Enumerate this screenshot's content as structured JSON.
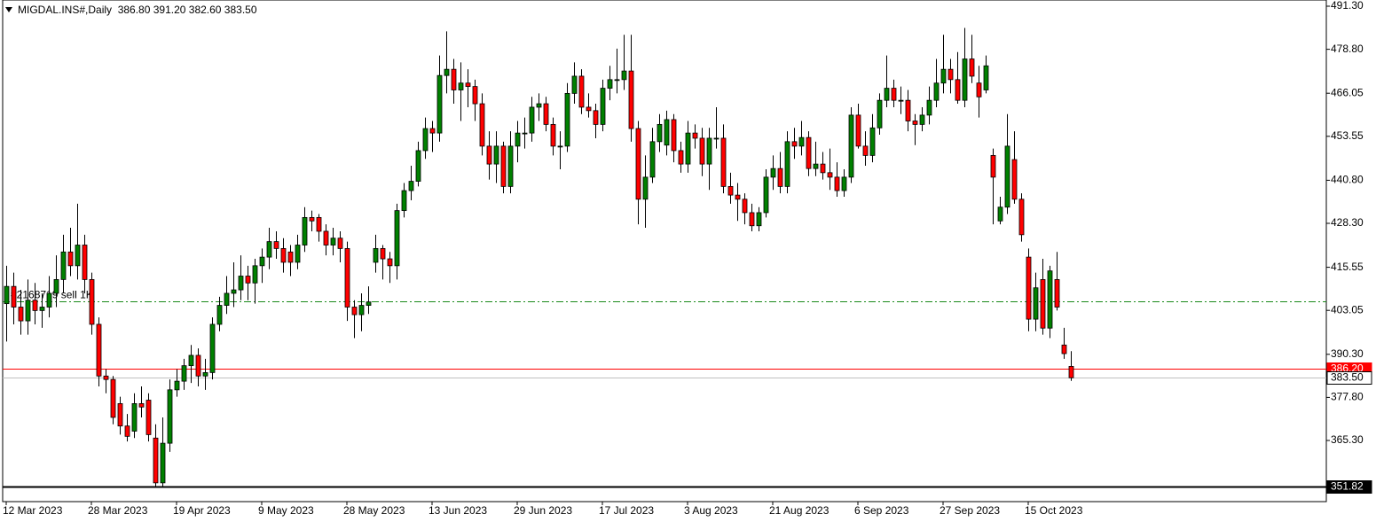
{
  "chart_data": {
    "type": "candlestick",
    "title": "MIGDAL.INS#,Daily  386.80 391.20 382.60 383.50",
    "up_color": "#008000",
    "down_color": "#ff0000",
    "ylim": [
      347.56,
      493.1
    ],
    "yticks": [
      {
        "value": 491.3,
        "label": "491.30"
      },
      {
        "value": 478.8,
        "label": "478.80"
      },
      {
        "value": 466.05,
        "label": "466.05"
      },
      {
        "value": 453.55,
        "label": "453.55"
      },
      {
        "value": 440.8,
        "label": "440.80"
      },
      {
        "value": 428.3,
        "label": "428.30"
      },
      {
        "value": 415.55,
        "label": "415.55"
      },
      {
        "value": 403.05,
        "label": "403.05"
      },
      {
        "value": 390.3,
        "label": "390.30"
      },
      {
        "value": 377.8,
        "label": "377.80"
      },
      {
        "value": 365.3,
        "label": "365.30"
      }
    ],
    "hlines": [
      {
        "value": 405.7,
        "text": "#2168719 sell 1K",
        "color": "#1a8a1a",
        "style": "dash-dot"
      },
      {
        "value": 386.2,
        "label": "386.20",
        "color": "#ff0000"
      },
      {
        "value": 383.5,
        "label": "383.50",
        "color": "#c0c0c0"
      },
      {
        "value": 351.82,
        "label": "351.82",
        "color": "#000000"
      }
    ],
    "categories": [
      "12 Mar 2023",
      null,
      null,
      null,
      null,
      null,
      null,
      null,
      null,
      null,
      null,
      null,
      "28 Mar 2023",
      null,
      null,
      null,
      null,
      null,
      null,
      null,
      null,
      null,
      null,
      null,
      "19 Apr 2023",
      null,
      null,
      null,
      null,
      null,
      null,
      null,
      null,
      null,
      null,
      null,
      "9 May 2023",
      null,
      null,
      null,
      null,
      null,
      null,
      null,
      null,
      null,
      null,
      null,
      "28 May 2023",
      null,
      null,
      null,
      null,
      null,
      null,
      null,
      null,
      null,
      null,
      null,
      "13 Jun 2023",
      null,
      null,
      null,
      null,
      null,
      null,
      null,
      null,
      null,
      null,
      null,
      "29 Jun 2023",
      null,
      null,
      null,
      null,
      null,
      null,
      null,
      null,
      null,
      null,
      null,
      "17 Jul 2023",
      null,
      null,
      null,
      null,
      null,
      null,
      null,
      null,
      null,
      null,
      null,
      "3 Aug 2023",
      null,
      null,
      null,
      null,
      null,
      null,
      null,
      null,
      null,
      null,
      null,
      "21 Aug 2023",
      null,
      null,
      null,
      null,
      null,
      null,
      null,
      null,
      null,
      null,
      null,
      "6 Sep 2023",
      null,
      null,
      null,
      null,
      null,
      null,
      null,
      null,
      null,
      null,
      null,
      "27 Sep 2023",
      null,
      null,
      null,
      null,
      null,
      null,
      null,
      null,
      null,
      null,
      null,
      "15 Oct 2023",
      null,
      null,
      null,
      null,
      null,
      null
    ],
    "ohlc": [
      [
        405,
        416,
        394,
        410
      ],
      [
        410,
        414,
        399,
        404
      ],
      [
        404,
        409,
        396,
        400
      ],
      [
        400,
        412,
        396,
        406
      ],
      [
        406,
        411,
        399,
        403
      ],
      [
        403,
        408,
        398,
        404
      ],
      [
        404,
        413,
        401,
        408
      ],
      [
        408,
        419,
        404,
        412
      ],
      [
        412,
        425,
        408,
        420
      ],
      [
        420,
        427,
        413,
        416
      ],
      [
        416,
        434,
        412,
        422
      ],
      [
        422,
        425,
        408,
        412
      ],
      [
        412,
        414,
        396,
        399
      ],
      [
        399,
        401,
        381,
        384
      ],
      [
        384,
        386,
        379,
        383
      ],
      [
        383,
        384,
        370,
        372
      ],
      [
        376,
        378,
        367,
        369.5
      ],
      [
        369.5,
        373,
        365,
        366.5
      ],
      [
        368,
        379,
        366,
        376
      ],
      [
        376,
        381,
        372,
        375
      ],
      [
        377,
        379,
        365,
        367
      ],
      [
        366,
        370,
        352,
        353
      ],
      [
        353,
        372,
        352,
        364.5
      ],
      [
        364.5,
        383,
        362,
        380
      ],
      [
        380,
        386,
        378,
        382.5
      ],
      [
        382.5,
        389,
        380,
        387
      ],
      [
        387,
        393,
        382,
        390
      ],
      [
        390,
        392,
        381,
        384
      ],
      [
        384,
        389,
        380,
        385
      ],
      [
        385,
        401,
        383,
        399
      ],
      [
        399,
        407,
        397,
        404.5
      ],
      [
        404.5,
        413,
        402,
        408
      ],
      [
        408,
        417,
        404,
        409
      ],
      [
        409,
        419,
        406,
        413
      ],
      [
        413,
        416,
        406,
        411
      ],
      [
        411,
        418,
        405,
        416
      ],
      [
        416,
        421,
        411,
        418.5
      ],
      [
        418.5,
        427,
        415,
        423
      ],
      [
        423,
        426,
        418,
        421
      ],
      [
        421,
        424,
        414,
        417
      ],
      [
        420,
        422,
        413,
        417
      ],
      [
        417,
        425,
        415,
        422
      ],
      [
        422,
        433,
        420,
        430
      ],
      [
        430,
        432,
        426,
        429
      ],
      [
        430,
        431,
        423,
        426
      ],
      [
        426,
        428,
        419,
        422
      ],
      [
        422,
        427,
        419,
        424
      ],
      [
        424,
        426,
        417,
        421
      ],
      [
        421,
        423,
        400,
        404
      ],
      [
        404,
        406,
        395,
        401.8
      ],
      [
        401.8,
        408,
        397,
        404.5
      ],
      [
        404.5,
        410,
        402,
        405.5
      ],
      [
        417,
        425,
        414,
        421
      ],
      [
        421,
        422,
        412,
        418
      ],
      [
        418,
        420,
        411,
        416
      ],
      [
        416,
        434,
        412,
        432
      ],
      [
        432,
        440,
        430,
        437.8
      ],
      [
        437.8,
        445,
        435,
        440.5
      ],
      [
        440.5,
        452,
        439,
        449.4
      ],
      [
        449.4,
        459,
        447,
        455.8
      ],
      [
        455.8,
        458,
        449,
        454.5
      ],
      [
        454.5,
        477,
        452,
        471.2
      ],
      [
        471.2,
        484,
        466,
        473
      ],
      [
        473,
        476,
        463,
        467
      ],
      [
        467,
        475,
        458,
        469
      ],
      [
        469,
        473,
        462,
        468
      ],
      [
        468,
        470,
        458,
        463
      ],
      [
        463,
        466,
        448,
        450.7
      ],
      [
        450.7,
        455,
        441,
        445.5
      ],
      [
        445.5,
        455,
        440,
        450.7
      ],
      [
        450.7,
        452,
        437,
        439
      ],
      [
        439,
        455,
        437,
        450.7
      ],
      [
        450.7,
        458,
        446,
        454.5
      ],
      [
        454.5,
        459,
        450,
        454.5
      ],
      [
        454.5,
        465,
        452,
        462
      ],
      [
        462,
        466,
        458,
        463
      ],
      [
        463,
        465,
        455,
        457
      ],
      [
        457,
        459,
        448,
        450.7
      ],
      [
        450.7,
        455,
        444,
        450.7
      ],
      [
        450.7,
        469,
        449,
        466
      ],
      [
        466,
        475,
        463,
        471
      ],
      [
        471,
        473,
        460,
        462
      ],
      [
        462,
        466,
        459,
        461
      ],
      [
        461,
        463,
        453,
        457
      ],
      [
        457,
        470,
        455,
        467.5
      ],
      [
        467.5,
        474,
        464,
        470
      ],
      [
        470,
        479,
        466,
        470
      ],
      [
        470,
        483,
        467,
        472.5
      ],
      [
        472.5,
        483,
        452,
        455.8
      ],
      [
        455.8,
        458,
        428,
        435.3
      ],
      [
        435.3,
        448,
        427,
        441.7
      ],
      [
        441.7,
        456,
        440,
        452
      ],
      [
        452,
        460,
        449,
        457
      ],
      [
        451,
        461,
        448,
        458.4
      ],
      [
        458.4,
        460,
        446,
        449.4
      ],
      [
        449.4,
        452,
        443,
        445.5
      ],
      [
        445.5,
        458,
        443,
        454.5
      ],
      [
        454.5,
        457,
        450,
        453
      ],
      [
        453,
        456,
        442,
        445.5
      ],
      [
        445.5,
        456,
        438,
        453
      ],
      [
        453,
        462,
        450,
        453
      ],
      [
        453,
        457,
        437,
        439
      ],
      [
        439,
        443,
        434,
        436.5
      ],
      [
        436.5,
        440,
        429,
        435.3
      ],
      [
        435.3,
        437,
        428,
        431.4
      ],
      [
        431.4,
        434,
        426,
        427.6
      ],
      [
        427.6,
        433,
        426,
        431.4
      ],
      [
        431.4,
        444,
        430,
        441.7
      ],
      [
        441.7,
        448,
        438,
        444.2
      ],
      [
        444.2,
        449,
        437,
        439
      ],
      [
        439,
        455,
        437,
        452
      ],
      [
        452,
        456,
        447,
        450.7
      ],
      [
        450.7,
        458,
        448,
        453.2
      ],
      [
        453.2,
        455,
        442,
        444.2
      ],
      [
        444.2,
        452,
        442,
        445.5
      ],
      [
        445.5,
        449,
        441,
        443
      ],
      [
        443,
        450,
        438,
        441.7
      ],
      [
        441.7,
        446,
        436,
        437.8
      ],
      [
        437.8,
        444,
        436,
        441.7
      ],
      [
        441.7,
        462,
        440,
        459.7
      ],
      [
        459.7,
        463,
        450,
        450.7
      ],
      [
        450.7,
        455,
        445,
        448
      ],
      [
        448,
        460,
        446,
        456
      ],
      [
        456,
        466,
        454,
        464
      ],
      [
        464,
        477,
        462,
        467.5
      ],
      [
        467.5,
        470,
        462,
        464
      ],
      [
        464,
        468,
        460,
        464
      ],
      [
        464,
        467,
        455,
        458
      ],
      [
        458,
        460,
        451,
        457
      ],
      [
        457,
        462,
        455,
        459.7
      ],
      [
        459.7,
        468,
        457,
        464
      ],
      [
        464,
        476,
        462,
        469
      ],
      [
        469,
        483,
        466,
        473
      ],
      [
        473,
        476,
        466,
        470
      ],
      [
        470,
        478,
        463,
        464
      ],
      [
        464,
        485,
        462,
        476
      ],
      [
        476,
        483,
        469,
        471
      ],
      [
        469,
        474,
        459,
        465
      ],
      [
        467,
        477,
        466,
        474
      ],
      [
        448,
        450,
        428,
        441.7
      ],
      [
        429,
        436,
        428,
        433
      ],
      [
        433,
        460,
        431,
        450.7
      ],
      [
        446.8,
        455,
        434,
        435.3
      ],
      [
        435.3,
        437,
        423,
        425
      ],
      [
        418.5,
        421,
        397,
        400.5
      ],
      [
        400.5,
        414,
        397,
        409.6
      ],
      [
        412,
        418,
        396,
        397.9
      ],
      [
        397.9,
        416,
        395,
        414.5
      ],
      [
        412,
        420,
        403,
        404
      ],
      [
        393,
        398,
        389,
        390.5
      ],
      [
        386.8,
        391.2,
        382.6,
        383.5
      ]
    ]
  }
}
